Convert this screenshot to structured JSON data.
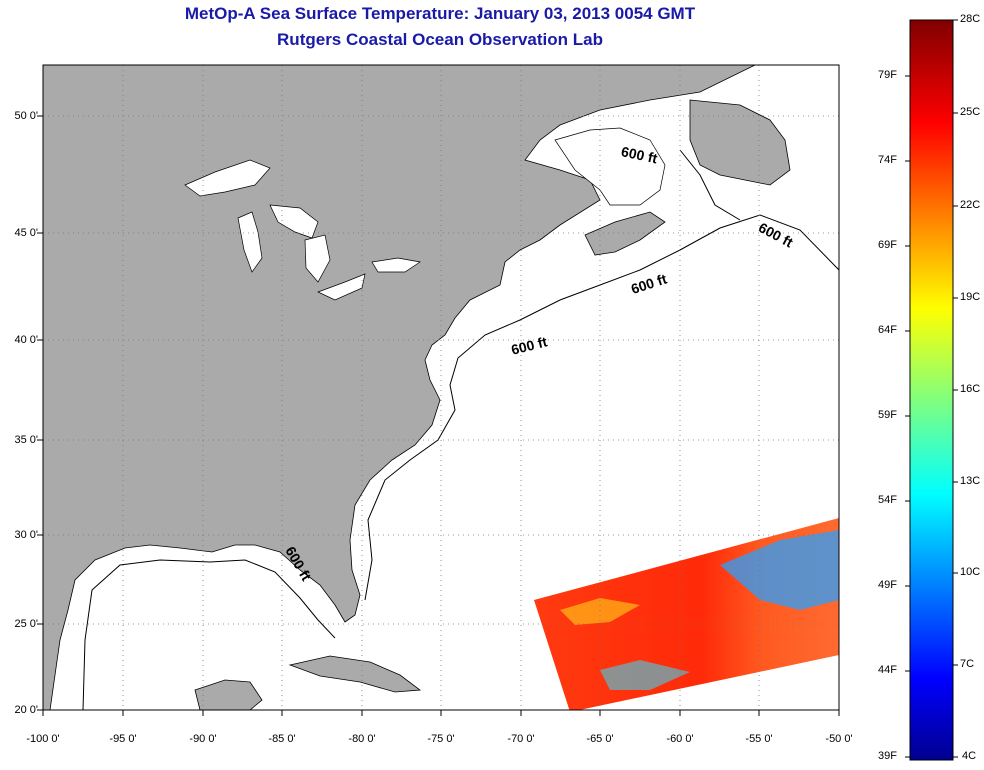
{
  "title": "MetOp-A Sea Surface Temperature:  January 03, 2013 0054 GMT",
  "subtitle": "Rutgers Coastal Ocean Observation Lab",
  "map": {
    "lon_ticks": [
      "-100 0'",
      "-95 0'",
      "-90 0'",
      "-85 0'",
      "-80 0'",
      "-75 0'",
      "-70 0'",
      "-65 0'",
      "-60 0'",
      "-55 0'",
      "-50 0'"
    ],
    "lat_ticks": [
      "20 0'",
      "25 0'",
      "30 0'",
      "35 0'",
      "40 0'",
      "45 0'",
      "50 0'"
    ],
    "contour_labels": [
      "600 ft",
      "600 ft",
      "600 ft",
      "600 ft",
      "600 ft"
    ],
    "land_color": "#aaaaaa",
    "ocean_color": "#ffffff"
  },
  "colorbar": {
    "celsius": [
      "28C",
      "25C",
      "22C",
      "19C",
      "16C",
      "13C",
      "10C",
      "7C",
      "4C"
    ],
    "fahrenheit": [
      "79F",
      "74F",
      "69F",
      "64F",
      "59F",
      "54F",
      "49F",
      "44F",
      "39F"
    ]
  }
}
